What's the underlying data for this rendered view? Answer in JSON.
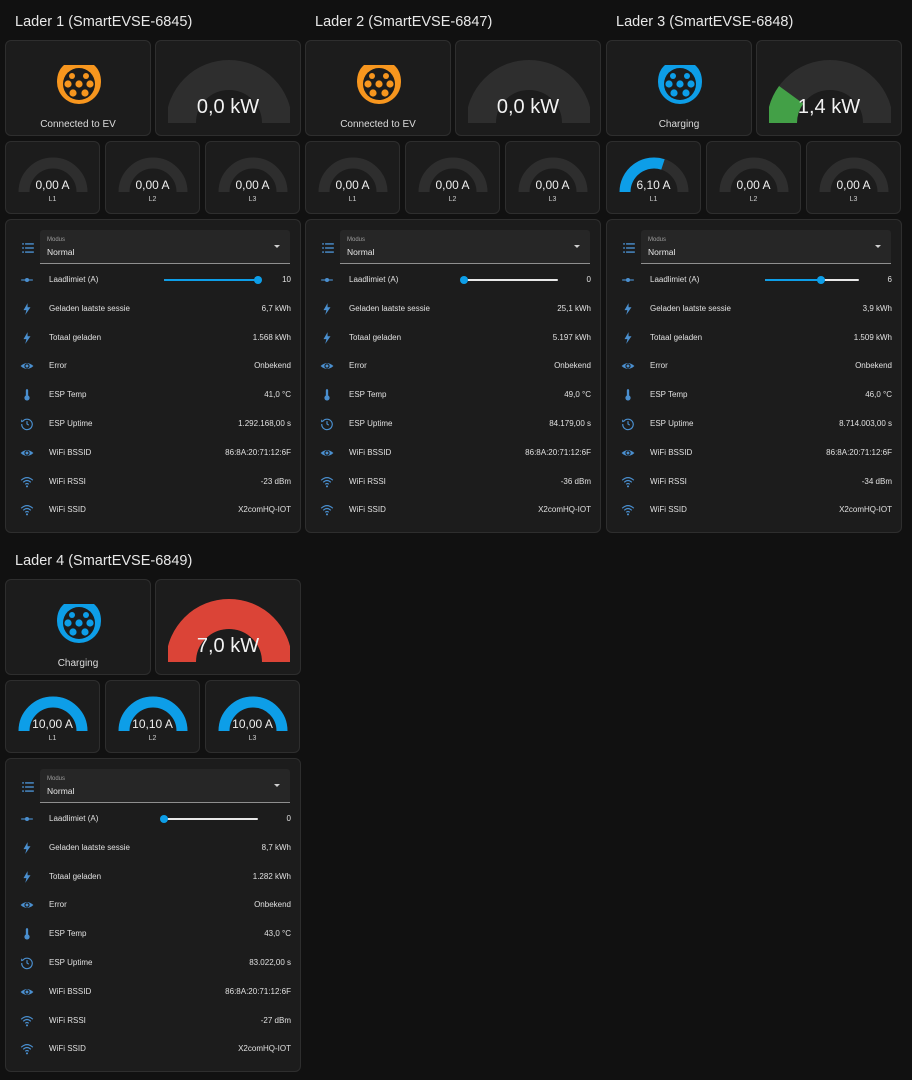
{
  "colors": {
    "arc_bg": "#2e2e2e",
    "blue": "#0d9ee8",
    "orange": "#f7961e",
    "green": "#43a047",
    "red": "#db4437",
    "icon_blue": "#4a8fcf"
  },
  "labels": {
    "modus": "Modus",
    "laadlimiet": "Laadlimiet (A)",
    "geladen_sessie": "Geladen laatste sessie",
    "totaal_geladen": "Totaal geladen",
    "error": "Error",
    "esp_temp": "ESP Temp",
    "esp_uptime": "ESP Uptime",
    "wifi_bssid": "WiFi BSSID",
    "wifi_rssi": "WiFi RSSI",
    "wifi_ssid": "WiFi SSID"
  },
  "icons": {
    "list": "format-list-icon",
    "slider": "slider-icon",
    "bolt": "lightning-bolt-icon",
    "eye": "eye-icon",
    "thermometer": "thermometer-icon",
    "uptime": "clock-restore-icon",
    "wifi": "wifi-icon",
    "plug": "ev-plug-type2-icon"
  },
  "chargers": [
    {
      "title": "Lader 1 (SmartEVSE-6845)",
      "status": "Connected to EV",
      "plug_color": "#f7961e",
      "power": {
        "text": "0,0 kW",
        "fraction": 0,
        "color": "#43a047"
      },
      "phases": [
        {
          "value": "0,00 A",
          "label": "L1",
          "fraction": 0
        },
        {
          "value": "0,00 A",
          "label": "L2",
          "fraction": 0
        },
        {
          "value": "0,00 A",
          "label": "L3",
          "fraction": 0
        }
      ],
      "modus": "Normal",
      "laadlimiet": {
        "value": "10",
        "fraction": 1.0
      },
      "geladen_sessie": "6,7 kWh",
      "totaal_geladen": "1.568 kWh",
      "error": "Onbekend",
      "esp_temp": "41,0 °C",
      "esp_uptime": "1.292.168,00 s",
      "wifi_bssid": "86:8A:20:71:12:6F",
      "wifi_rssi": "-23 dBm",
      "wifi_ssid": "X2comHQ-IOT"
    },
    {
      "title": "Lader 2 (SmartEVSE-6847)",
      "status": "Connected to EV",
      "plug_color": "#f7961e",
      "power": {
        "text": "0,0 kW",
        "fraction": 0,
        "color": "#43a047"
      },
      "phases": [
        {
          "value": "0,00 A",
          "label": "L1",
          "fraction": 0
        },
        {
          "value": "0,00 A",
          "label": "L2",
          "fraction": 0
        },
        {
          "value": "0,00 A",
          "label": "L3",
          "fraction": 0
        }
      ],
      "modus": "Normal",
      "laadlimiet": {
        "value": "0",
        "fraction": 0
      },
      "geladen_sessie": "25,1 kWh",
      "totaal_geladen": "5.197 kWh",
      "error": "Onbekend",
      "esp_temp": "49,0 °C",
      "esp_uptime": "84.179,00 s",
      "wifi_bssid": "86:8A:20:71:12:6F",
      "wifi_rssi": "-36 dBm",
      "wifi_ssid": "X2comHQ-IOT"
    },
    {
      "title": "Lader 3 (SmartEVSE-6848)",
      "status": "Charging",
      "plug_color": "#0d9ee8",
      "power": {
        "text": "1,4 kW",
        "fraction": 0.2,
        "color": "#43a047"
      },
      "phases": [
        {
          "value": "6,10 A",
          "label": "L1",
          "fraction": 0.6
        },
        {
          "value": "0,00 A",
          "label": "L2",
          "fraction": 0
        },
        {
          "value": "0,00 A",
          "label": "L3",
          "fraction": 0
        }
      ],
      "modus": "Normal",
      "laadlimiet": {
        "value": "6",
        "fraction": 0.6
      },
      "geladen_sessie": "3,9 kWh",
      "totaal_geladen": "1.509 kWh",
      "error": "Onbekend",
      "esp_temp": "46,0 °C",
      "esp_uptime": "8.714.003,00 s",
      "wifi_bssid": "86:8A:20:71:12:6F",
      "wifi_rssi": "-34 dBm",
      "wifi_ssid": "X2comHQ-IOT"
    },
    {
      "title": "Lader 4 (SmartEVSE-6849)",
      "status": "Charging",
      "plug_color": "#0d9ee8",
      "power": {
        "text": "7,0 kW",
        "fraction": 1.0,
        "color": "#db4437"
      },
      "phases": [
        {
          "value": "10,00 A",
          "label": "L1",
          "fraction": 1.0
        },
        {
          "value": "10,10 A",
          "label": "L2",
          "fraction": 1.0
        },
        {
          "value": "10,00 A",
          "label": "L3",
          "fraction": 1.0
        }
      ],
      "modus": "Normal",
      "laadlimiet": {
        "value": "0",
        "fraction": 0
      },
      "geladen_sessie": "8,7 kWh",
      "totaal_geladen": "1.282 kWh",
      "error": "Onbekend",
      "esp_temp": "43,0 °C",
      "esp_uptime": "83.022,00 s",
      "wifi_bssid": "86:8A:20:71:12:6F",
      "wifi_rssi": "-27 dBm",
      "wifi_ssid": "X2comHQ-IOT"
    }
  ]
}
